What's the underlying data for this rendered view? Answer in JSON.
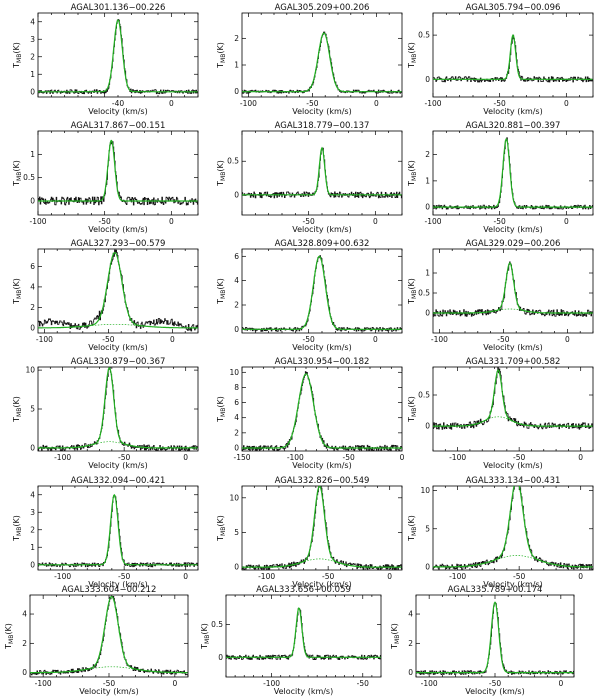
{
  "figure": {
    "xlabel": "Velocity (km/s)",
    "ylabel_main": "T",
    "ylabel_sub": "MB",
    "ylabel_tail": "(K)"
  },
  "colors": {
    "spectrum": "#151515",
    "fit": "#22b022",
    "axes": "#000000",
    "background": "#ffffff"
  },
  "chart_data": [
    {
      "type": "line",
      "title": "AGAL301.136−00.226",
      "xlim": [
        -100,
        20
      ],
      "ylim": [
        -0.3,
        4.5
      ],
      "xticks": [
        -40,
        0
      ],
      "yticks": [
        0,
        1,
        2,
        3,
        4
      ],
      "ytick_labels": [
        "0",
        "1",
        "2",
        "3",
        "4"
      ],
      "peak": 4.1,
      "center": -40,
      "width": 3.2,
      "noise": 0.06,
      "wing": 0
    },
    {
      "type": "line",
      "title": "AGAL305.209+00.206",
      "xlim": [
        -105,
        20
      ],
      "ylim": [
        -0.2,
        2.95
      ],
      "xticks": [
        -100,
        -50,
        0
      ],
      "yticks": [
        0,
        1,
        2
      ],
      "ytick_labels": [
        "0",
        "1",
        "2"
      ],
      "peak": 2.2,
      "center": -41,
      "width": 4.5,
      "noise": 0.05,
      "wing": 0
    },
    {
      "type": "line",
      "title": "AGAL305.794−00.096",
      "xlim": [
        -100,
        20
      ],
      "ylim": [
        -0.2,
        0.75
      ],
      "xticks": [
        -100,
        -50,
        0
      ],
      "yticks": [
        0,
        0.5
      ],
      "ytick_labels": [
        "0",
        "0.5"
      ],
      "peak": 0.5,
      "center": -40,
      "width": 2,
      "noise": 0.08,
      "wing": 0
    },
    {
      "type": "line",
      "title": "AGAL317.867−00.151",
      "xlim": [
        -100,
        20
      ],
      "ylim": [
        -0.3,
        1.5
      ],
      "xticks": [
        -100,
        -50,
        0
      ],
      "yticks": [
        0,
        0.5,
        1
      ],
      "ytick_labels": [
        "0",
        "0.5",
        "1"
      ],
      "peak": 1.3,
      "center": -45,
      "width": 2.5,
      "noise": 0.12,
      "wing": 0
    },
    {
      "type": "line",
      "title": "AGAL318.779−00.137",
      "xlim": [
        -100,
        20
      ],
      "ylim": [
        -0.3,
        0.95
      ],
      "xticks": [
        -50,
        0
      ],
      "yticks": [
        0,
        0.5
      ],
      "ytick_labels": [
        "0",
        "0.5"
      ],
      "peak": 0.7,
      "center": -40,
      "width": 2,
      "noise": 0.09,
      "wing": 0
    },
    {
      "type": "line",
      "title": "AGAL320.881−00.397",
      "xlim": [
        -100,
        20
      ],
      "ylim": [
        -0.3,
        2.9
      ],
      "xticks": [
        -100,
        -50,
        0
      ],
      "yticks": [
        0,
        1,
        2
      ],
      "ytick_labels": [
        "0",
        "1",
        "2"
      ],
      "peak": 2.6,
      "center": -45,
      "width": 2.5,
      "noise": 0.06,
      "wing": 0
    },
    {
      "type": "line",
      "title": "AGAL327.293−00.579",
      "xlim": [
        -105,
        20
      ],
      "ylim": [
        -0.5,
        7.7
      ],
      "xticks": [
        -100,
        -50,
        0
      ],
      "yticks": [
        0,
        2,
        4,
        6
      ],
      "ytick_labels": [
        "0",
        "2",
        "4",
        "6"
      ],
      "peak": 7,
      "center": -45,
      "width": 5.5,
      "noise": 0.1,
      "wing": 0.35,
      "ripple": 0.6
    },
    {
      "type": "line",
      "title": "AGAL328.809+00.632",
      "xlim": [
        -100,
        20
      ],
      "ylim": [
        -0.3,
        6.6
      ],
      "xticks": [
        -50,
        0
      ],
      "yticks": [
        0,
        2,
        4,
        6
      ],
      "ytick_labels": [
        "0",
        "2",
        "4",
        "6"
      ],
      "peak": 6,
      "center": -42,
      "width": 4.5,
      "noise": 0.06,
      "wing": 0
    },
    {
      "type": "line",
      "title": "AGAL329.029−00.206",
      "xlim": [
        -105,
        20
      ],
      "ylim": [
        -0.5,
        1.6
      ],
      "xticks": [
        -100,
        -50,
        0
      ],
      "yticks": [
        0,
        0.5,
        1
      ],
      "ytick_labels": [
        "0",
        "0.5",
        "1"
      ],
      "peak": 1.15,
      "center": -45,
      "width": 3,
      "noise": 0.1,
      "wing": 0.1
    },
    {
      "type": "line",
      "title": "AGAL330.879−00.367",
      "xlim": [
        -120,
        10
      ],
      "ylim": [
        -0.4,
        10.4
      ],
      "xticks": [
        -100,
        -50,
        0
      ],
      "yticks": [
        0,
        5,
        10
      ],
      "ytick_labels": [
        "0",
        "5",
        "10"
      ],
      "peak": 9.5,
      "center": -62,
      "width": 3.5,
      "noise": 0.08,
      "wing": 0.8
    },
    {
      "type": "line",
      "title": "AGAL330.954−00.182",
      "xlim": [
        -150,
        0
      ],
      "ylim": [
        -0.4,
        10.7
      ],
      "xticks": [
        -150,
        -100,
        -50,
        0
      ],
      "yticks": [
        0,
        2,
        4,
        6,
        8,
        10
      ],
      "ytick_labels": [
        "0",
        "2",
        "4",
        "6",
        "8",
        "10"
      ],
      "peak": 9.8,
      "center": -90,
      "width": 7,
      "noise": 0.08,
      "wing": 0
    },
    {
      "type": "line",
      "title": "AGAL331.709+00.582",
      "xlim": [
        -120,
        10
      ],
      "ylim": [
        -0.4,
        0.95
      ],
      "xticks": [
        -100,
        -50,
        0
      ],
      "yticks": [
        0,
        0.5
      ],
      "ytick_labels": [
        "0",
        "0.5"
      ],
      "peak": 0.75,
      "center": -67,
      "width": 3,
      "noise": 0.1,
      "wing": 0.15
    },
    {
      "type": "line",
      "title": "AGAL332.094−00.421",
      "xlim": [
        -120,
        10
      ],
      "ylim": [
        -0.3,
        4.5
      ],
      "xticks": [
        -100,
        -50,
        0
      ],
      "yticks": [
        0,
        1,
        2,
        3,
        4
      ],
      "ytick_labels": [
        "0",
        "1",
        "2",
        "3",
        "4"
      ],
      "peak": 4,
      "center": -58,
      "width": 3,
      "noise": 0.06,
      "wing": 0
    },
    {
      "type": "line",
      "title": "AGAL332.826−00.549",
      "xlim": [
        -120,
        10
      ],
      "ylim": [
        -0.4,
        11.7
      ],
      "xticks": [
        -100,
        -50,
        0
      ],
      "yticks": [
        0,
        5,
        10
      ],
      "ytick_labels": [
        "0",
        "5",
        "10"
      ],
      "peak": 10.5,
      "center": -57,
      "width": 4,
      "noise": 0.08,
      "wing": 1.2
    },
    {
      "type": "line",
      "title": "AGAL333.134−00.431",
      "xlim": [
        -120,
        10
      ],
      "ylim": [
        -0.4,
        10.6
      ],
      "xticks": [
        -100,
        -50,
        0
      ],
      "yticks": [
        0,
        5,
        10
      ],
      "ytick_labels": [
        "0",
        "5",
        "10"
      ],
      "peak": 10,
      "center": -52,
      "width": 5,
      "noise": 0.08,
      "wing": 1.5
    },
    {
      "type": "line",
      "title": "AGAL333.604−00.212",
      "xlim": [
        -110,
        10
      ],
      "ylim": [
        -0.3,
        5.3
      ],
      "xticks": [
        -100,
        -50,
        0
      ],
      "yticks": [
        0,
        2,
        4
      ],
      "ytick_labels": [
        "0",
        "2",
        "4"
      ],
      "peak": 4.8,
      "center": -48,
      "width": 5,
      "noise": 0.07,
      "wing": 0.4
    },
    {
      "type": "line",
      "title": "AGAL333.656+00.059",
      "xlim": [
        -125,
        -40
      ],
      "ylim": [
        -0.3,
        0.95
      ],
      "xticks": [
        -100,
        -50
      ],
      "yticks": [
        0,
        0.5
      ],
      "ytick_labels": [
        "0",
        "0.5"
      ],
      "peak": 0.75,
      "center": -85,
      "width": 1.6,
      "noise": 0.07,
      "wing": 0
    },
    {
      "type": "line",
      "title": "AGAL335.789+00.174",
      "xlim": [
        -110,
        10
      ],
      "ylim": [
        -0.3,
        5.3
      ],
      "xticks": [
        -100,
        -50,
        0
      ],
      "yticks": [
        0,
        2,
        4
      ],
      "ytick_labels": [
        "0",
        "2",
        "4"
      ],
      "peak": 4.8,
      "center": -50,
      "width": 2.8,
      "noise": 0.06,
      "wing": 0
    }
  ]
}
